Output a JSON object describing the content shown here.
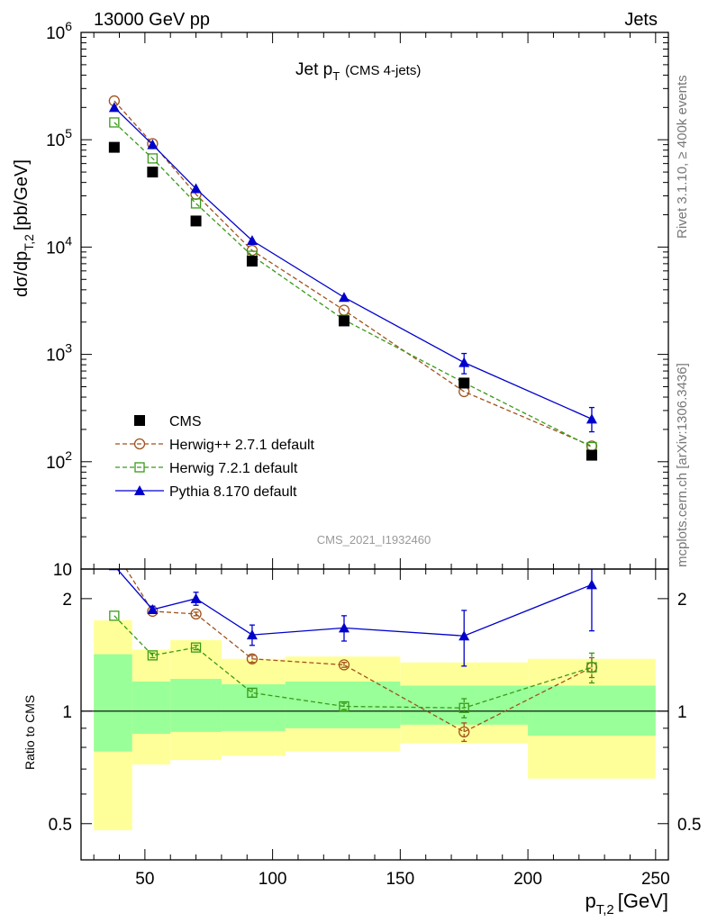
{
  "header": {
    "left": "13000 GeV pp",
    "right": "Jets"
  },
  "side_text": {
    "rivet": "Rivet 3.1.10, ≥ 400k events",
    "mcplots": "mcplots.cern.ch [arXiv:1306.3436]"
  },
  "chart_data": {
    "type": "scatter",
    "title_main": "Jet p",
    "title_sub": "T",
    "title_note": "(CMS 4-jets)",
    "analysis_id": "CMS_2021_I1932460",
    "xlabel": "p",
    "xlabel_sub": "T,2",
    "xlabel_unit": "[GeV]",
    "ylabel_main": "dσ/dp",
    "ylabel_sub": "T,2",
    "ylabel_unit": "[pb/GeV]",
    "ratio_ylabel": "Ratio to CMS",
    "xlim": [
      25,
      255
    ],
    "main_ylim": [
      10,
      1000000
    ],
    "ratio_ylim": [
      0.4,
      2.4
    ],
    "y_scale": "log",
    "x_ticks": [
      "50",
      "100",
      "150",
      "200",
      "250"
    ],
    "main_y_ticks": [
      {
        "base": "10",
        "exp": ""
      },
      {
        "base": "10",
        "exp": "2"
      },
      {
        "base": "10",
        "exp": "3"
      },
      {
        "base": "10",
        "exp": "4"
      },
      {
        "base": "10",
        "exp": "5"
      },
      {
        "base": "10",
        "exp": "6"
      }
    ],
    "ratio_y_ticks": [
      "0.5",
      "1",
      "2"
    ],
    "bins": [
      [
        30,
        45
      ],
      [
        45,
        60
      ],
      [
        60,
        80
      ],
      [
        80,
        105
      ],
      [
        105,
        150
      ],
      [
        150,
        200
      ],
      [
        200,
        250
      ]
    ],
    "x": [
      38,
      53,
      70,
      92,
      128,
      175,
      225
    ],
    "band_inner": [
      [
        0.78,
        1.42
      ],
      [
        0.87,
        1.2
      ],
      [
        0.88,
        1.22
      ],
      [
        0.885,
        1.18
      ],
      [
        0.9,
        1.2
      ],
      [
        0.92,
        1.17
      ],
      [
        0.86,
        1.17
      ]
    ],
    "band_outer": [
      [
        0.48,
        1.75
      ],
      [
        0.72,
        1.46
      ],
      [
        0.74,
        1.55
      ],
      [
        0.76,
        1.38
      ],
      [
        0.78,
        1.4
      ],
      [
        0.82,
        1.35
      ],
      [
        0.66,
        1.38
      ]
    ],
    "series": [
      {
        "name": "CMS",
        "color": "#000000",
        "marker": "square-filled",
        "values": [
          85000,
          50000,
          17500,
          7400,
          2050,
          540,
          115
        ]
      },
      {
        "name": "Herwig++ 2.7.1 default",
        "color": "#a0521d",
        "marker": "circle-open",
        "dash": true,
        "values": [
          230000,
          92000,
          31000,
          9300,
          2580,
          450,
          140
        ],
        "ratio": [
          2.7,
          1.85,
          1.82,
          1.38,
          1.33,
          0.88,
          1.31
        ],
        "ratio_err": [
          0,
          0.02,
          0.02,
          0.03,
          0.02,
          0.05,
          0.08
        ]
      },
      {
        "name": "Herwig 7.2.1 default",
        "color": "#3a9a1a",
        "marker": "square-open",
        "dash": true,
        "values": [
          145000,
          67000,
          25500,
          8300,
          2100,
          545,
          137
        ],
        "ratio": [
          1.8,
          1.41,
          1.48,
          1.12,
          1.03,
          1.02,
          1.31
        ],
        "ratio_err": [
          0,
          0.02,
          0.02,
          0.03,
          0.02,
          0.06,
          0.12
        ]
      },
      {
        "name": "Pythia 8.170 default",
        "color": "#0000cc",
        "marker": "triangle-filled",
        "values": [
          200000,
          90000,
          35000,
          11500,
          3400,
          840,
          250
        ],
        "ratio": [
          2.45,
          1.87,
          2.0,
          1.6,
          1.67,
          1.59,
          2.18
        ],
        "ratio_err": [
          0,
          0.04,
          0.08,
          0.1,
          0.13,
          0.27,
          0.54
        ],
        "err_lo": [
          0,
          0,
          0,
          0,
          0,
          180,
          60
        ],
        "err_hi": [
          0,
          0,
          0,
          0,
          0,
          180,
          70
        ]
      }
    ]
  }
}
